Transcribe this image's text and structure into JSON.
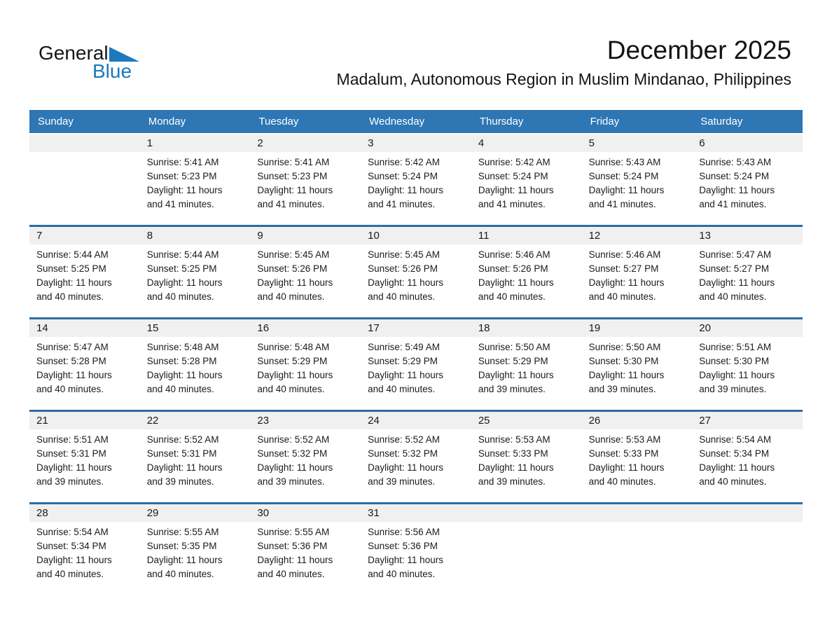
{
  "colors": {
    "header_bar": "#2e76b4",
    "week_separator": "#2d6da4",
    "day_strip": "#f0f0f0",
    "logo_blue": "#1b79bd",
    "text": "#1b1b1b"
  },
  "logo": {
    "general": "General",
    "blue": "Blue"
  },
  "header": {
    "month_title": "December 2025",
    "location": "Madalum, Autonomous Region in Muslim Mindanao, Philippines"
  },
  "weekdays": [
    "Sunday",
    "Monday",
    "Tuesday",
    "Wednesday",
    "Thursday",
    "Friday",
    "Saturday"
  ],
  "weeks": [
    [
      {
        "day": "",
        "lines": []
      },
      {
        "day": "1",
        "lines": [
          "Sunrise: 5:41 AM",
          "Sunset: 5:23 PM",
          "Daylight: 11 hours",
          "and 41 minutes."
        ]
      },
      {
        "day": "2",
        "lines": [
          "Sunrise: 5:41 AM",
          "Sunset: 5:23 PM",
          "Daylight: 11 hours",
          "and 41 minutes."
        ]
      },
      {
        "day": "3",
        "lines": [
          "Sunrise: 5:42 AM",
          "Sunset: 5:24 PM",
          "Daylight: 11 hours",
          "and 41 minutes."
        ]
      },
      {
        "day": "4",
        "lines": [
          "Sunrise: 5:42 AM",
          "Sunset: 5:24 PM",
          "Daylight: 11 hours",
          "and 41 minutes."
        ]
      },
      {
        "day": "5",
        "lines": [
          "Sunrise: 5:43 AM",
          "Sunset: 5:24 PM",
          "Daylight: 11 hours",
          "and 41 minutes."
        ]
      },
      {
        "day": "6",
        "lines": [
          "Sunrise: 5:43 AM",
          "Sunset: 5:24 PM",
          "Daylight: 11 hours",
          "and 41 minutes."
        ]
      }
    ],
    [
      {
        "day": "7",
        "lines": [
          "Sunrise: 5:44 AM",
          "Sunset: 5:25 PM",
          "Daylight: 11 hours",
          "and 40 minutes."
        ]
      },
      {
        "day": "8",
        "lines": [
          "Sunrise: 5:44 AM",
          "Sunset: 5:25 PM",
          "Daylight: 11 hours",
          "and 40 minutes."
        ]
      },
      {
        "day": "9",
        "lines": [
          "Sunrise: 5:45 AM",
          "Sunset: 5:26 PM",
          "Daylight: 11 hours",
          "and 40 minutes."
        ]
      },
      {
        "day": "10",
        "lines": [
          "Sunrise: 5:45 AM",
          "Sunset: 5:26 PM",
          "Daylight: 11 hours",
          "and 40 minutes."
        ]
      },
      {
        "day": "11",
        "lines": [
          "Sunrise: 5:46 AM",
          "Sunset: 5:26 PM",
          "Daylight: 11 hours",
          "and 40 minutes."
        ]
      },
      {
        "day": "12",
        "lines": [
          "Sunrise: 5:46 AM",
          "Sunset: 5:27 PM",
          "Daylight: 11 hours",
          "and 40 minutes."
        ]
      },
      {
        "day": "13",
        "lines": [
          "Sunrise: 5:47 AM",
          "Sunset: 5:27 PM",
          "Daylight: 11 hours",
          "and 40 minutes."
        ]
      }
    ],
    [
      {
        "day": "14",
        "lines": [
          "Sunrise: 5:47 AM",
          "Sunset: 5:28 PM",
          "Daylight: 11 hours",
          "and 40 minutes."
        ]
      },
      {
        "day": "15",
        "lines": [
          "Sunrise: 5:48 AM",
          "Sunset: 5:28 PM",
          "Daylight: 11 hours",
          "and 40 minutes."
        ]
      },
      {
        "day": "16",
        "lines": [
          "Sunrise: 5:48 AM",
          "Sunset: 5:29 PM",
          "Daylight: 11 hours",
          "and 40 minutes."
        ]
      },
      {
        "day": "17",
        "lines": [
          "Sunrise: 5:49 AM",
          "Sunset: 5:29 PM",
          "Daylight: 11 hours",
          "and 40 minutes."
        ]
      },
      {
        "day": "18",
        "lines": [
          "Sunrise: 5:50 AM",
          "Sunset: 5:29 PM",
          "Daylight: 11 hours",
          "and 39 minutes."
        ]
      },
      {
        "day": "19",
        "lines": [
          "Sunrise: 5:50 AM",
          "Sunset: 5:30 PM",
          "Daylight: 11 hours",
          "and 39 minutes."
        ]
      },
      {
        "day": "20",
        "lines": [
          "Sunrise: 5:51 AM",
          "Sunset: 5:30 PM",
          "Daylight: 11 hours",
          "and 39 minutes."
        ]
      }
    ],
    [
      {
        "day": "21",
        "lines": [
          "Sunrise: 5:51 AM",
          "Sunset: 5:31 PM",
          "Daylight: 11 hours",
          "and 39 minutes."
        ]
      },
      {
        "day": "22",
        "lines": [
          "Sunrise: 5:52 AM",
          "Sunset: 5:31 PM",
          "Daylight: 11 hours",
          "and 39 minutes."
        ]
      },
      {
        "day": "23",
        "lines": [
          "Sunrise: 5:52 AM",
          "Sunset: 5:32 PM",
          "Daylight: 11 hours",
          "and 39 minutes."
        ]
      },
      {
        "day": "24",
        "lines": [
          "Sunrise: 5:52 AM",
          "Sunset: 5:32 PM",
          "Daylight: 11 hours",
          "and 39 minutes."
        ]
      },
      {
        "day": "25",
        "lines": [
          "Sunrise: 5:53 AM",
          "Sunset: 5:33 PM",
          "Daylight: 11 hours",
          "and 39 minutes."
        ]
      },
      {
        "day": "26",
        "lines": [
          "Sunrise: 5:53 AM",
          "Sunset: 5:33 PM",
          "Daylight: 11 hours",
          "and 40 minutes."
        ]
      },
      {
        "day": "27",
        "lines": [
          "Sunrise: 5:54 AM",
          "Sunset: 5:34 PM",
          "Daylight: 11 hours",
          "and 40 minutes."
        ]
      }
    ],
    [
      {
        "day": "28",
        "lines": [
          "Sunrise: 5:54 AM",
          "Sunset: 5:34 PM",
          "Daylight: 11 hours",
          "and 40 minutes."
        ]
      },
      {
        "day": "29",
        "lines": [
          "Sunrise: 5:55 AM",
          "Sunset: 5:35 PM",
          "Daylight: 11 hours",
          "and 40 minutes."
        ]
      },
      {
        "day": "30",
        "lines": [
          "Sunrise: 5:55 AM",
          "Sunset: 5:36 PM",
          "Daylight: 11 hours",
          "and 40 minutes."
        ]
      },
      {
        "day": "31",
        "lines": [
          "Sunrise: 5:56 AM",
          "Sunset: 5:36 PM",
          "Daylight: 11 hours",
          "and 40 minutes."
        ]
      },
      {
        "day": "",
        "lines": []
      },
      {
        "day": "",
        "lines": []
      },
      {
        "day": "",
        "lines": []
      }
    ]
  ]
}
